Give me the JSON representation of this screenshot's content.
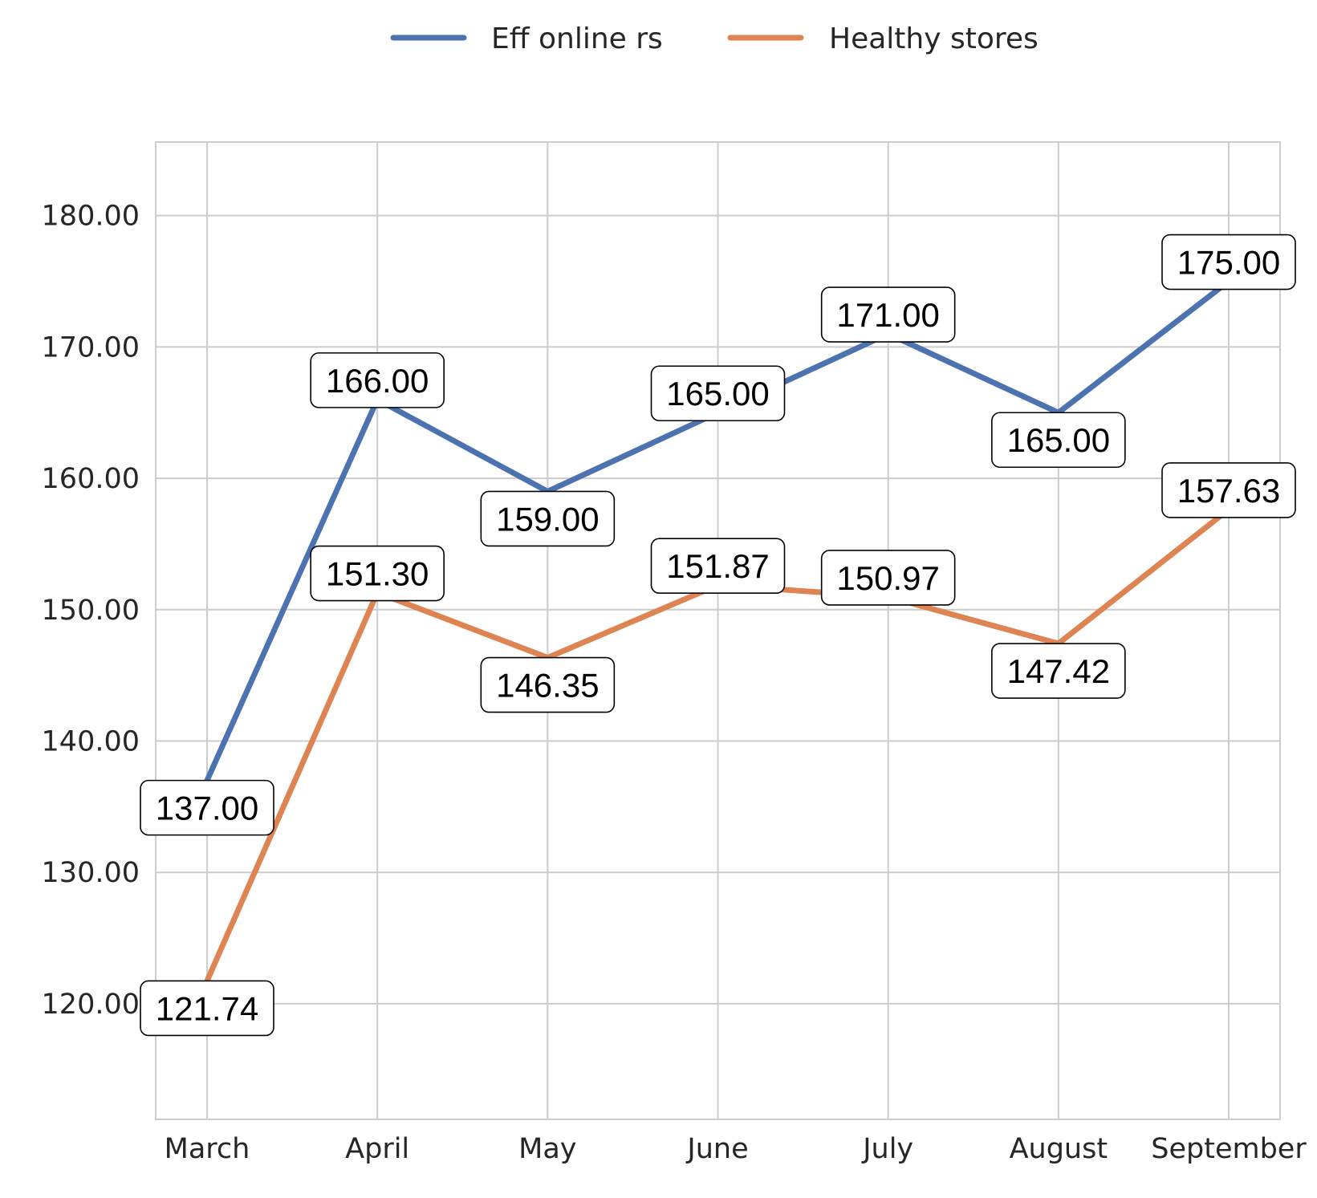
{
  "chart_data": {
    "type": "line",
    "title": "",
    "xlabel": "",
    "ylabel": "",
    "categories": [
      "March",
      "April",
      "May",
      "June",
      "July",
      "August",
      "September"
    ],
    "series": [
      {
        "name": "Eff online rs",
        "color": "#4c72b0",
        "values": [
          137.0,
          166.0,
          159.0,
          165.0,
          171.0,
          165.0,
          175.0
        ],
        "labels": [
          "137.00",
          "166.00",
          "159.00",
          "165.00",
          "171.00",
          "165.00",
          "175.00"
        ]
      },
      {
        "name": "Healthy stores",
        "color": "#dd8452",
        "values": [
          121.74,
          151.3,
          146.35,
          151.87,
          150.97,
          147.42,
          157.63
        ],
        "labels": [
          "121.74",
          "151.30",
          "146.35",
          "151.87",
          "150.97",
          "147.42",
          "157.63"
        ]
      }
    ],
    "ylim": [
      111.2,
      185.6
    ],
    "yticks": [
      120,
      130,
      140,
      150,
      160,
      170,
      180
    ],
    "ytick_labels": [
      "120.00",
      "130.00",
      "140.00",
      "150.00",
      "160.00",
      "170.00",
      "180.00"
    ],
    "grid": true,
    "legend_position": "top-center"
  }
}
